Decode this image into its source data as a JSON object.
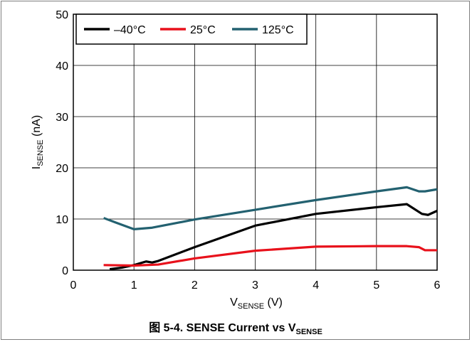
{
  "caption": {
    "prefix": "图 5-4. SENSE Current vs V",
    "sub": "SENSE"
  },
  "chart_data": {
    "type": "line",
    "xlabel": {
      "main": "V",
      "sub": "SENSE",
      "unit": " (V)"
    },
    "ylabel": {
      "main": "I",
      "sub": "SENSE",
      "unit": " (nA)"
    },
    "xlim": [
      0,
      6
    ],
    "ylim": [
      0,
      50
    ],
    "xticks": [
      0,
      1,
      2,
      3,
      4,
      5,
      6
    ],
    "yticks": [
      0,
      10,
      20,
      30,
      40,
      50
    ],
    "grid": true,
    "legend_position": "top-left",
    "series": [
      {
        "name": "–40°C",
        "color": "#000000",
        "x": [
          0.6,
          0.8,
          1.0,
          1.2,
          1.3,
          1.4,
          2.0,
          3.0,
          4.0,
          5.0,
          5.5,
          5.75,
          5.85,
          6.0
        ],
        "y": [
          0.2,
          0.5,
          1.0,
          1.7,
          1.5,
          1.8,
          4.5,
          8.7,
          11.0,
          12.3,
          12.9,
          11.0,
          10.8,
          11.6
        ]
      },
      {
        "name": "25°C",
        "color": "#e8111b",
        "x": [
          0.5,
          1.0,
          1.4,
          2.0,
          3.0,
          4.0,
          5.0,
          5.5,
          5.7,
          5.8,
          6.0
        ],
        "y": [
          1.0,
          0.9,
          1.1,
          2.3,
          3.8,
          4.6,
          4.7,
          4.7,
          4.5,
          3.9,
          3.9
        ]
      },
      {
        "name": "125°C",
        "color": "#236170",
        "x": [
          0.5,
          0.7,
          1.0,
          1.3,
          2.0,
          3.0,
          4.0,
          5.0,
          5.5,
          5.7,
          5.8,
          6.0
        ],
        "y": [
          10.2,
          9.3,
          8.0,
          8.3,
          9.9,
          11.8,
          13.7,
          15.4,
          16.2,
          15.4,
          15.4,
          15.8
        ]
      }
    ]
  }
}
